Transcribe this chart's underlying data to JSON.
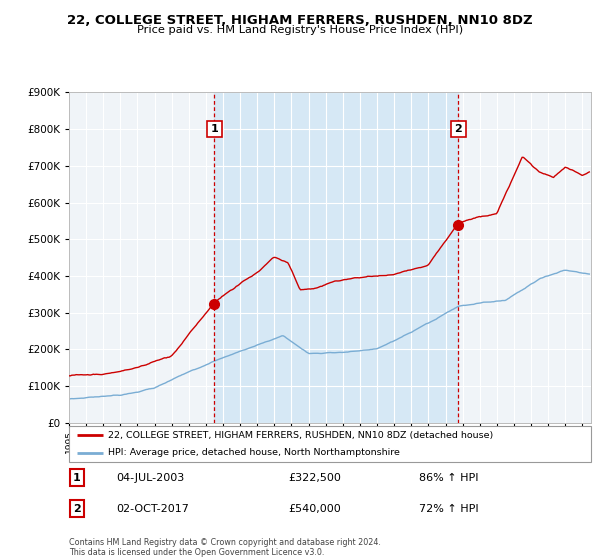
{
  "title": "22, COLLEGE STREET, HIGHAM FERRERS, RUSHDEN, NN10 8DZ",
  "subtitle": "Price paid vs. HM Land Registry's House Price Index (HPI)",
  "legend_line1": "22, COLLEGE STREET, HIGHAM FERRERS, RUSHDEN, NN10 8DZ (detached house)",
  "legend_line2": "HPI: Average price, detached house, North Northamptonshire",
  "sale1_label": "1",
  "sale1_date": "04-JUL-2003",
  "sale1_price": "£322,500",
  "sale1_hpi": "86% ↑ HPI",
  "sale2_label": "2",
  "sale2_date": "02-OCT-2017",
  "sale2_price": "£540,000",
  "sale2_hpi": "72% ↑ HPI",
  "footer": "Contains HM Land Registry data © Crown copyright and database right 2024.\nThis data is licensed under the Open Government Licence v3.0.",
  "property_color": "#cc0000",
  "hpi_color": "#7aadd4",
  "vline_color": "#cc0000",
  "bg_color": "#d6e8f5",
  "plot_bg": "#f0f4f8",
  "ylim": [
    0,
    900000
  ],
  "yticks": [
    0,
    100000,
    200000,
    300000,
    400000,
    500000,
    600000,
    700000,
    800000,
    900000
  ],
  "sale1_x": 2003.5,
  "sale2_x": 2017.75,
  "sale1_y": 322500,
  "sale2_y": 540000,
  "xmin": 1995.0,
  "xmax": 2025.5
}
